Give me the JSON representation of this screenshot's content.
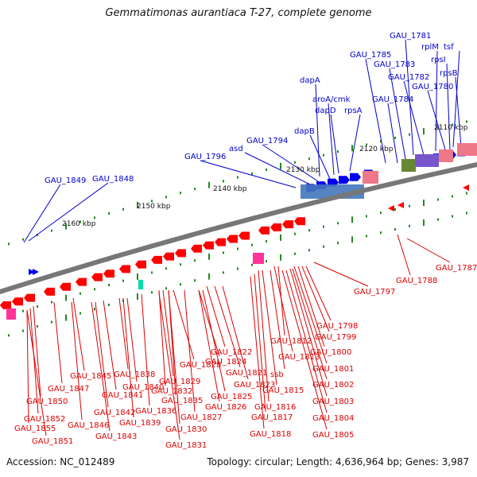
{
  "title": "Gemmatimonas aurantiaca T-27, complete genome",
  "accession": "Accession: NC_012489",
  "summary": "Topology: circular; Length: 4,636,964 bp; Genes: 3,987",
  "colors": {
    "forward_label": "#0000cc",
    "reverse_label": "#dd0000",
    "forward_cds": "#0000ee",
    "reverse_cds": "#ff0000",
    "backbone": "#777777",
    "ticks": "#228822",
    "rna": "#ff3399",
    "trna": "#00ddaa",
    "cog_blue": "#4477bb",
    "cog_purple": "#7755cc",
    "cog_pink": "#ee7788",
    "cog_olive": "#668833"
  },
  "scale_labels": [
    {
      "text": "2110 kbp"
    },
    {
      "text": "2120 kbp"
    },
    {
      "text": "2130 kbp"
    },
    {
      "text": "2140 kbp"
    },
    {
      "text": "2150 kbp"
    },
    {
      "text": "2160 kbp"
    }
  ],
  "forward_labels": [
    "GAU_1781",
    "rplM",
    "tsf",
    "GAU_1785",
    "rpsI",
    "GAU_1783",
    "rpsB",
    "GAU_1782",
    "GAU_1780",
    "GAU_1784",
    "dapA",
    "aroA/cmk",
    "dapD",
    "rpsA",
    "dapB",
    "GAU_1794",
    "asd",
    "GAU_1796",
    "GAU_1849",
    "GAU_1848"
  ],
  "reverse_labels": [
    "GAU_1787",
    "GAU_1788",
    "GAU_1797",
    "GAU_1798",
    "GAU_1799",
    "GAU_1812",
    "GAU_1800",
    "GAU_1822",
    "GAU_1813",
    "GAU_1801",
    "GAU_1824",
    "ssb",
    "GAU_1821",
    "GAU_1828",
    "GAU_1838",
    "GAU_1845",
    "GAU_1802",
    "GAU_1823",
    "GAU_1840",
    "GAU_1829",
    "GAU_1815",
    "GAU_1847",
    "GAU_1832",
    "GAU_1825",
    "GAU_1841",
    "GAU_1803",
    "GAU_1835",
    "GAU_1826",
    "GAU_1850",
    "GAU_1816",
    "GAU_1842",
    "GAU_1836",
    "GAU_1804",
    "GAU_1817",
    "GAU_1827",
    "GAU_1839",
    "GAU_1852",
    "GAU_1846",
    "GAU_1830",
    "GAU_1855",
    "GAU_1843",
    "GAU_1818",
    "GAU_1805",
    "GAU_1851",
    "GAU_1831"
  ]
}
